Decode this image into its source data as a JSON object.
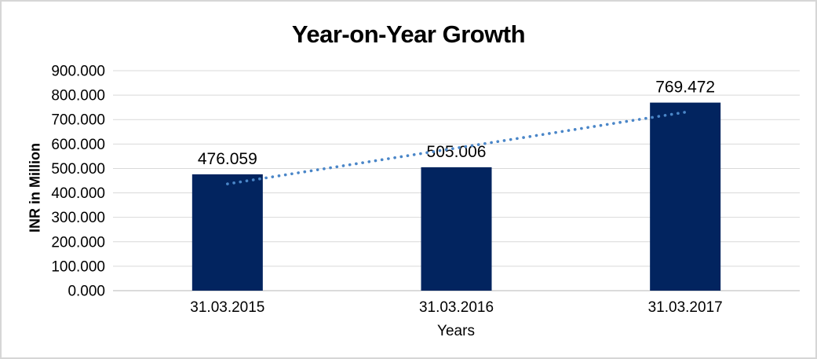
{
  "frame": {
    "background_color": "#ffffff",
    "border_color": "#d6d6d6"
  },
  "chart_data": {
    "type": "bar",
    "title": "Year-on-Year Growth",
    "xlabel": "Years",
    "ylabel": "INR in Million",
    "categories": [
      "31.03.2015",
      "31.03.2016",
      "31.03.2017"
    ],
    "values": [
      476.059,
      505.006,
      769.472
    ],
    "data_labels": [
      "476.059",
      "505.006",
      "769.472"
    ],
    "ylim": [
      0,
      900
    ],
    "ytick_interval": 100,
    "ytick_labels": [
      "0.000",
      "100.000",
      "200.000",
      "300.000",
      "400.000",
      "500.000",
      "600.000",
      "700.000",
      "800.000",
      "900.000"
    ],
    "grid": true,
    "legend": false,
    "bar_color": "#02245f",
    "gridline_color": "#d9d9d9",
    "axis_line_color": "#cfcfcf",
    "text_color": "#000000",
    "trendline": {
      "type": "linear",
      "style": "dotted",
      "color": "#4a86c8"
    }
  }
}
